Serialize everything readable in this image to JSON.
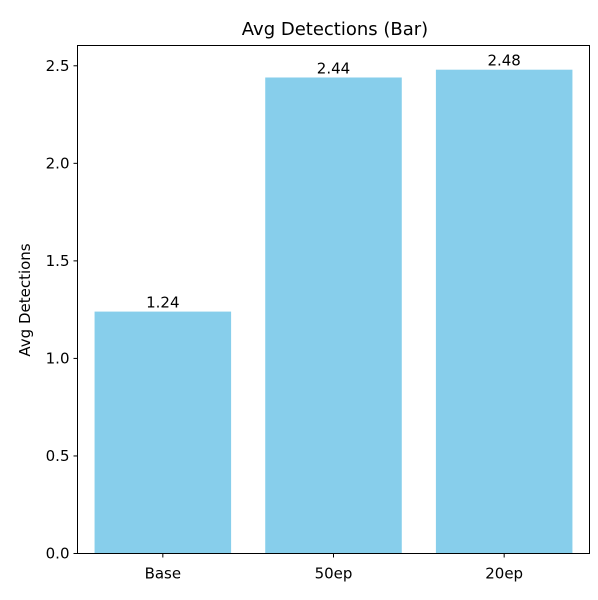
{
  "chart_data": {
    "type": "bar",
    "title": "Avg Detections (Bar)",
    "xlabel": "",
    "ylabel": "Avg Detections",
    "categories": [
      "Base",
      "50ep",
      "20ep"
    ],
    "values": [
      1.24,
      2.44,
      2.48
    ],
    "data_labels": [
      "1.24",
      "2.44",
      "2.48"
    ],
    "yticks": [
      0.0,
      0.5,
      1.0,
      1.5,
      2.0,
      2.5
    ],
    "ytick_labels": [
      "0.0",
      "0.5",
      "1.0",
      "1.5",
      "2.0",
      "2.5"
    ],
    "ylim": [
      0,
      2.604
    ],
    "bar_color": "#87CEEB",
    "grid": false,
    "legend": "none"
  }
}
